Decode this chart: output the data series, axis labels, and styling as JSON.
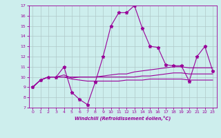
{
  "xlabel": "Windchill (Refroidissement éolien,°C)",
  "background_color": "#cdeeed",
  "line_color": "#990099",
  "grid_color": "#b0c8c8",
  "series": [
    [
      9,
      9.7,
      10,
      10,
      11,
      8.5,
      7.8,
      7.3,
      9.5,
      12,
      15,
      16.3,
      16.3,
      17,
      14.8,
      13,
      12.9,
      11.2,
      11.1,
      11.1,
      9.6,
      12,
      13,
      10.6
    ],
    [
      9,
      9.7,
      10,
      10,
      10.2,
      9.9,
      10,
      10,
      10,
      10.1,
      10.2,
      10.3,
      10.3,
      10.5,
      10.6,
      10.7,
      10.8,
      10.9,
      11,
      11,
      10.9,
      10.9,
      10.9,
      10.9
    ],
    [
      9,
      9.7,
      10,
      10,
      10,
      10,
      10,
      10,
      10,
      10,
      10,
      10,
      10,
      10,
      10.1,
      10.1,
      10.2,
      10.3,
      10.4,
      10.4,
      10.3,
      10.3,
      10.3,
      10.3
    ],
    [
      9,
      9.7,
      10,
      10,
      10,
      9.8,
      9.7,
      9.6,
      9.6,
      9.6,
      9.6,
      9.6,
      9.7,
      9.7,
      9.7,
      9.8,
      9.8,
      9.8,
      9.8,
      9.8,
      9.7,
      9.7,
      9.7,
      9.7
    ]
  ],
  "x": [
    0,
    1,
    2,
    3,
    4,
    5,
    6,
    7,
    8,
    9,
    10,
    11,
    12,
    13,
    14,
    15,
    16,
    17,
    18,
    19,
    20,
    21,
    22,
    23
  ],
  "ylim": [
    7,
    17
  ],
  "xlim": [
    -0.5,
    23.5
  ],
  "yticks": [
    7,
    8,
    9,
    10,
    11,
    12,
    13,
    14,
    15,
    16,
    17
  ],
  "xticks": [
    0,
    1,
    2,
    3,
    4,
    5,
    6,
    7,
    8,
    9,
    10,
    11,
    12,
    13,
    14,
    15,
    16,
    17,
    18,
    19,
    20,
    21,
    22,
    23
  ]
}
